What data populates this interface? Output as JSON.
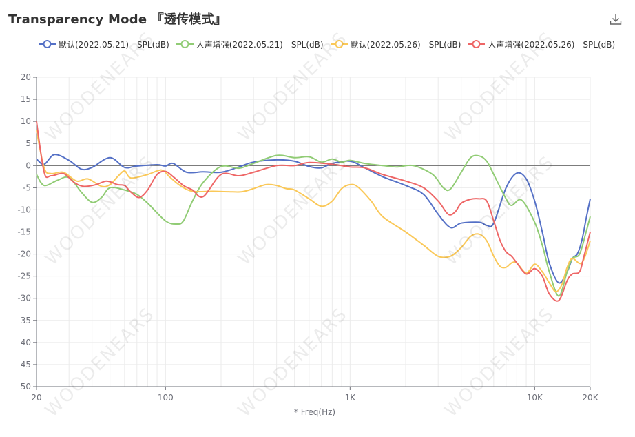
{
  "header": {
    "title": "Transparency Mode 『透传模式』",
    "download_icon": "download-icon"
  },
  "watermark_text": "WOODENEARS",
  "colors": {
    "series": [
      "#5470c6",
      "#91cc75",
      "#fac858",
      "#ee6666"
    ],
    "grid": "#ebebeb",
    "axis": "#6e7079",
    "zero_line": "#555555"
  },
  "chart_data": {
    "type": "line",
    "xlabel": "* Freq(Hz)",
    "ylabel": "",
    "xscale": "log",
    "xlim": [
      20,
      20000
    ],
    "ylim": [
      -50,
      20
    ],
    "x_ticks": [
      {
        "value": 20,
        "label": "20"
      },
      {
        "value": 100,
        "label": "100"
      },
      {
        "value": 1000,
        "label": "1K"
      },
      {
        "value": 10000,
        "label": "10K"
      },
      {
        "value": 20000,
        "label": "20K"
      }
    ],
    "y_ticks": [
      20,
      15,
      10,
      5,
      0,
      -5,
      -10,
      -15,
      -20,
      -25,
      -30,
      -35,
      -40,
      -45,
      -50
    ],
    "grid": true,
    "legend_position": "top-left",
    "series": [
      {
        "name": "默认(2022.05.21) - SPL(dB)",
        "points": [
          [
            20,
            1.5
          ],
          [
            22,
            0.3
          ],
          [
            25,
            2.5
          ],
          [
            30,
            1.2
          ],
          [
            35,
            -0.8
          ],
          [
            40,
            -0.4
          ],
          [
            50,
            1.8
          ],
          [
            60,
            -0.4
          ],
          [
            70,
            -0.1
          ],
          [
            90,
            0.2
          ],
          [
            100,
            -0.1
          ],
          [
            110,
            0.5
          ],
          [
            130,
            -1.5
          ],
          [
            160,
            -1.4
          ],
          [
            200,
            -1.5
          ],
          [
            250,
            -0.3
          ],
          [
            300,
            0.8
          ],
          [
            400,
            1.3
          ],
          [
            500,
            1
          ],
          [
            600,
            -0.2
          ],
          [
            700,
            -0.5
          ],
          [
            800,
            0.5
          ],
          [
            1000,
            1
          ],
          [
            1200,
            -0.5
          ],
          [
            1500,
            -2.5
          ],
          [
            2000,
            -4.5
          ],
          [
            2500,
            -6.5
          ],
          [
            3000,
            -11
          ],
          [
            3500,
            -14
          ],
          [
            4000,
            -13
          ],
          [
            5000,
            -12.8
          ],
          [
            5500,
            -13.5
          ],
          [
            6000,
            -13
          ],
          [
            7000,
            -5
          ],
          [
            8000,
            -1.7
          ],
          [
            9000,
            -3
          ],
          [
            10000,
            -8
          ],
          [
            11000,
            -15
          ],
          [
            12000,
            -22
          ],
          [
            13500,
            -26.5
          ],
          [
            15000,
            -24
          ],
          [
            16000,
            -21
          ],
          [
            17000,
            -20
          ],
          [
            18000,
            -17
          ],
          [
            19000,
            -12
          ],
          [
            20000,
            -7.5
          ]
        ]
      },
      {
        "name": "人声增强(2022.05.21) - SPL(dB)",
        "points": [
          [
            20,
            -2
          ],
          [
            22,
            -4.5
          ],
          [
            26,
            -3.3
          ],
          [
            30,
            -2.7
          ],
          [
            35,
            -6
          ],
          [
            40,
            -8.3
          ],
          [
            45,
            -7.2
          ],
          [
            50,
            -5
          ],
          [
            60,
            -5.5
          ],
          [
            70,
            -6.5
          ],
          [
            80,
            -8.5
          ],
          [
            100,
            -12.5
          ],
          [
            115,
            -13.2
          ],
          [
            125,
            -12.5
          ],
          [
            140,
            -8
          ],
          [
            160,
            -3.8
          ],
          [
            200,
            -0.2
          ],
          [
            250,
            -0.6
          ],
          [
            300,
            0.5
          ],
          [
            400,
            2.3
          ],
          [
            500,
            1.8
          ],
          [
            600,
            2
          ],
          [
            700,
            0.8
          ],
          [
            800,
            1.5
          ],
          [
            900,
            0.8
          ],
          [
            1000,
            1.2
          ],
          [
            1200,
            0.5
          ],
          [
            1500,
            0
          ],
          [
            1800,
            -0.3
          ],
          [
            2200,
            0
          ],
          [
            2800,
            -2
          ],
          [
            3200,
            -5
          ],
          [
            3500,
            -5.3
          ],
          [
            4000,
            -1.5
          ],
          [
            4500,
            1.8
          ],
          [
            5000,
            2.2
          ],
          [
            5500,
            1
          ],
          [
            6000,
            -2
          ],
          [
            7000,
            -7.5
          ],
          [
            7500,
            -9
          ],
          [
            8500,
            -7.8
          ],
          [
            10000,
            -12.8
          ],
          [
            11000,
            -18
          ],
          [
            12000,
            -24
          ],
          [
            13500,
            -29.5
          ],
          [
            15000,
            -24
          ],
          [
            16000,
            -21
          ],
          [
            17500,
            -20
          ],
          [
            19000,
            -15
          ],
          [
            20000,
            -11.5
          ]
        ]
      },
      {
        "name": "默认(2022.05.26) - SPL(dB)",
        "points": [
          [
            20,
            8
          ],
          [
            22,
            -0.5
          ],
          [
            24,
            -1.8
          ],
          [
            28,
            -1.5
          ],
          [
            33,
            -3.5
          ],
          [
            38,
            -3
          ],
          [
            45,
            -4.7
          ],
          [
            50,
            -4.3
          ],
          [
            55,
            -2.5
          ],
          [
            60,
            -1.2
          ],
          [
            65,
            -2.8
          ],
          [
            80,
            -2
          ],
          [
            95,
            -1
          ],
          [
            105,
            -2.5
          ],
          [
            120,
            -4.5
          ],
          [
            140,
            -5.8
          ],
          [
            180,
            -5.8
          ],
          [
            220,
            -5.9
          ],
          [
            260,
            -5.9
          ],
          [
            300,
            -5.2
          ],
          [
            350,
            -4.3
          ],
          [
            400,
            -4.5
          ],
          [
            450,
            -5.2
          ],
          [
            500,
            -5.5
          ],
          [
            600,
            -7.5
          ],
          [
            700,
            -9.2
          ],
          [
            800,
            -8
          ],
          [
            900,
            -5.2
          ],
          [
            1000,
            -4.3
          ],
          [
            1100,
            -4.8
          ],
          [
            1300,
            -8
          ],
          [
            1500,
            -11.5
          ],
          [
            2000,
            -15
          ],
          [
            2500,
            -18
          ],
          [
            3000,
            -20.5
          ],
          [
            3500,
            -20.5
          ],
          [
            4000,
            -18.5
          ],
          [
            4500,
            -16
          ],
          [
            5000,
            -15.5
          ],
          [
            5500,
            -17
          ],
          [
            6000,
            -20.5
          ],
          [
            6500,
            -22.8
          ],
          [
            7000,
            -23
          ],
          [
            7500,
            -22
          ],
          [
            8000,
            -22
          ],
          [
            9000,
            -24.3
          ],
          [
            10000,
            -22.3
          ],
          [
            11000,
            -24
          ],
          [
            12000,
            -26.5
          ],
          [
            13000,
            -28.5
          ],
          [
            14000,
            -27
          ],
          [
            15000,
            -23
          ],
          [
            16000,
            -21
          ],
          [
            18000,
            -22
          ],
          [
            20000,
            -17
          ]
        ]
      },
      {
        "name": "人声增强(2022.05.26) - SPL(dB)",
        "points": [
          [
            20,
            10
          ],
          [
            22,
            -1.5
          ],
          [
            24,
            -2.3
          ],
          [
            28,
            -1.8
          ],
          [
            32,
            -3.8
          ],
          [
            36,
            -4.7
          ],
          [
            42,
            -4.3
          ],
          [
            48,
            -3.5
          ],
          [
            55,
            -4.3
          ],
          [
            60,
            -4.5
          ],
          [
            65,
            -6
          ],
          [
            72,
            -7.2
          ],
          [
            80,
            -5.5
          ],
          [
            90,
            -2
          ],
          [
            100,
            -1.3
          ],
          [
            110,
            -2.5
          ],
          [
            125,
            -4.5
          ],
          [
            140,
            -5.5
          ],
          [
            160,
            -7
          ],
          [
            200,
            -2
          ],
          [
            250,
            -2.3
          ],
          [
            300,
            -1.5
          ],
          [
            400,
            0
          ],
          [
            500,
            0
          ],
          [
            600,
            0.7
          ],
          [
            800,
            0.3
          ],
          [
            1000,
            -0.3
          ],
          [
            1200,
            -0.5
          ],
          [
            1500,
            -2
          ],
          [
            2000,
            -3.5
          ],
          [
            2500,
            -5
          ],
          [
            3000,
            -8
          ],
          [
            3400,
            -11
          ],
          [
            3700,
            -10.5
          ],
          [
            4000,
            -8.5
          ],
          [
            4500,
            -7.6
          ],
          [
            5000,
            -7.5
          ],
          [
            5500,
            -8
          ],
          [
            6000,
            -12.5
          ],
          [
            6500,
            -17
          ],
          [
            7000,
            -19.5
          ],
          [
            7500,
            -20.5
          ],
          [
            8000,
            -22
          ],
          [
            9000,
            -24.5
          ],
          [
            10000,
            -23.3
          ],
          [
            11000,
            -25
          ],
          [
            12000,
            -29
          ],
          [
            13500,
            -30.5
          ],
          [
            15000,
            -26
          ],
          [
            16000,
            -24.5
          ],
          [
            17500,
            -24
          ],
          [
            18500,
            -20.5
          ],
          [
            20000,
            -15
          ]
        ]
      }
    ]
  }
}
